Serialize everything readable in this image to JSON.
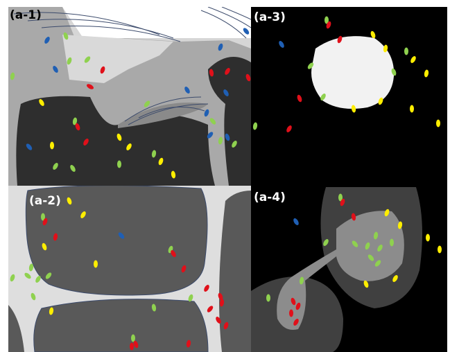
{
  "panels": [
    {
      "label": "(a-1)"
    },
    {
      "label": "(a-2)"
    },
    {
      "label": "(a-3)"
    },
    {
      "label": "(a-4)"
    }
  ]
}
